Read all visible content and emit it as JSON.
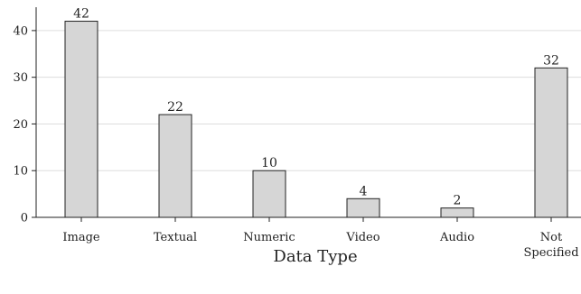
{
  "chart_data": {
    "type": "bar",
    "title": "",
    "xlabel": "Data Type",
    "ylabel": "",
    "categories": [
      "Image",
      "Textual",
      "Numeric",
      "Video",
      "Audio",
      "Not Specified"
    ],
    "category_lines": [
      [
        "Image"
      ],
      [
        "Textual"
      ],
      [
        "Numeric"
      ],
      [
        "Video"
      ],
      [
        "Audio"
      ],
      [
        "Not",
        "Specified"
      ]
    ],
    "values": [
      42,
      22,
      10,
      4,
      2,
      32
    ],
    "ylim": [
      0,
      45
    ],
    "yticks": [
      0,
      10,
      20,
      30,
      40
    ],
    "grid": true,
    "colors": {
      "bar_fill": "#d6d6d6",
      "bar_stroke": "#222222",
      "grid": "#dddddd",
      "axis": "#222222"
    }
  }
}
